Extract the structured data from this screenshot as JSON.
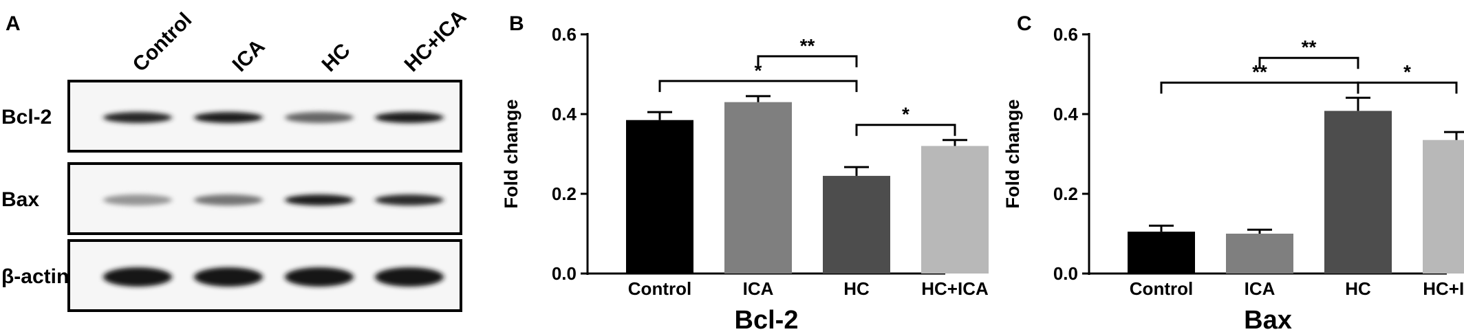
{
  "panels": {
    "a": {
      "letter": "A",
      "lanes": [
        "Control",
        "ICA",
        "HC",
        "HC+ICA"
      ],
      "blots": [
        {
          "label": "Bcl-2",
          "band_intensity": [
            0.92,
            0.95,
            0.62,
            0.96
          ]
        },
        {
          "label": "Bax",
          "band_intensity": [
            0.4,
            0.55,
            0.95,
            0.9
          ]
        },
        {
          "label": "β-actin",
          "band_intensity": [
            1.0,
            1.0,
            1.0,
            1.0
          ]
        }
      ]
    },
    "b": {
      "letter": "B"
    },
    "c": {
      "letter": "C"
    }
  },
  "chart_data": [
    {
      "type": "bar",
      "title": "Bcl-2",
      "ylabel": "Fold change",
      "xlabel": "",
      "categories": [
        "Control",
        "ICA",
        "HC",
        "HC+ICA"
      ],
      "values": [
        0.385,
        0.43,
        0.245,
        0.32
      ],
      "errors": [
        0.02,
        0.015,
        0.022,
        0.015
      ],
      "ylim": [
        0,
        0.6
      ],
      "yticks": [
        "0.0",
        "0.2",
        "0.4",
        "0.6"
      ],
      "colors": [
        "#000000",
        "#7f7f7f",
        "#4d4d4d",
        "#b8b8b8"
      ],
      "significance": [
        {
          "from": 0,
          "to": 2,
          "label": "*"
        },
        {
          "from": 1,
          "to": 2,
          "label": "**"
        },
        {
          "from": 2,
          "to": 3,
          "label": "*"
        }
      ]
    },
    {
      "type": "bar",
      "title": "Bax",
      "ylabel": "Fold change",
      "xlabel": "",
      "categories": [
        "Control",
        "ICA",
        "HC",
        "HC+ICA"
      ],
      "values": [
        0.105,
        0.1,
        0.408,
        0.335
      ],
      "errors": [
        0.015,
        0.01,
        0.033,
        0.02
      ],
      "ylim": [
        0,
        0.6
      ],
      "yticks": [
        "0.0",
        "0.2",
        "0.4",
        "0.6"
      ],
      "colors": [
        "#000000",
        "#7f7f7f",
        "#4d4d4d",
        "#b8b8b8"
      ],
      "significance": [
        {
          "from": 0,
          "to": 2,
          "label": "**"
        },
        {
          "from": 1,
          "to": 2,
          "label": "**"
        },
        {
          "from": 2,
          "to": 3,
          "label": "*"
        }
      ]
    }
  ]
}
